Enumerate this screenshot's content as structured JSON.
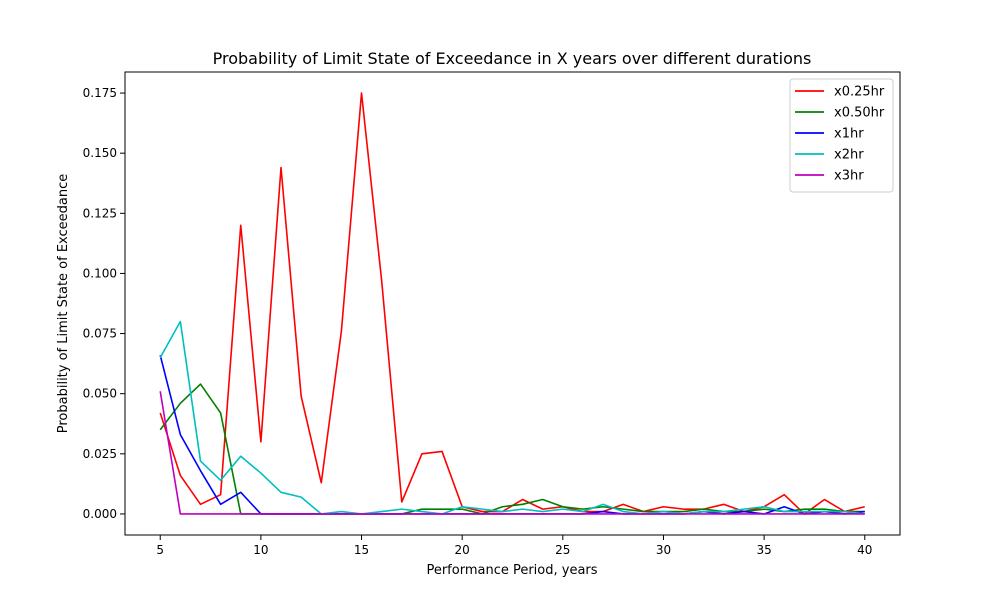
{
  "chart_data": {
    "type": "line",
    "title": "Probability of Limit State of Exceedance in X years over different durations",
    "xlabel": "Performance Period, years",
    "ylabel": "Probability of Limit State of Exceedance",
    "xlim": [
      3.25,
      41.75
    ],
    "ylim": [
      -0.00875,
      0.18375
    ],
    "xticks": [
      "5",
      "10",
      "15",
      "20",
      "25",
      "30",
      "35",
      "40"
    ],
    "yticks": [
      "0.000",
      "0.025",
      "0.050",
      "0.075",
      "0.100",
      "0.125",
      "0.150",
      "0.175"
    ],
    "grid": false,
    "legend_position": "top-right",
    "x": [
      5,
      6,
      7,
      8,
      9,
      10,
      11,
      12,
      13,
      14,
      15,
      16,
      17,
      18,
      19,
      20,
      21,
      22,
      23,
      24,
      25,
      26,
      27,
      28,
      29,
      30,
      31,
      32,
      33,
      34,
      35,
      36,
      37,
      38,
      39,
      40
    ],
    "series": [
      {
        "name": "x0.25hr",
        "color": "#ff0000",
        "values": [
          0.042,
          0.016,
          0.004,
          0.008,
          0.12,
          0.03,
          0.144,
          0.049,
          0.013,
          0.076,
          0.175,
          0.097,
          0.005,
          0.025,
          0.026,
          0.003,
          0.001,
          0.001,
          0.006,
          0.002,
          0.003,
          0.001,
          0.001,
          0.004,
          0.001,
          0.003,
          0.002,
          0.002,
          0.004,
          0.001,
          0.003,
          0.008,
          0.0,
          0.006,
          0.001,
          0.003
        ]
      },
      {
        "name": "x0.50hr",
        "color": "#008000",
        "values": [
          0.035,
          0.046,
          0.054,
          0.042,
          0.0,
          0.0,
          0.0,
          0.0,
          0.0,
          0.0,
          0.0,
          0.0,
          0.0,
          0.002,
          0.002,
          0.002,
          0.0,
          0.003,
          0.004,
          0.006,
          0.003,
          0.002,
          0.003,
          0.002,
          0.001,
          0.001,
          0.001,
          0.002,
          0.001,
          0.001,
          0.002,
          0.001,
          0.002,
          0.002,
          0.001,
          0.001
        ]
      },
      {
        "name": "x1hr",
        "color": "#0000ff",
        "values": [
          0.066,
          0.033,
          0.018,
          0.004,
          0.009,
          0.0,
          0.0,
          0.0,
          0.0,
          0.0,
          0.0,
          0.0,
          0.0,
          0.0,
          0.0,
          0.0,
          0.0,
          0.0,
          0.0,
          0.0,
          0.0,
          0.0,
          0.001,
          0.0,
          0.0,
          0.0,
          0.0,
          0.001,
          0.0,
          0.001,
          0.0,
          0.003,
          0.0,
          0.001,
          0.0,
          0.001
        ]
      },
      {
        "name": "x2hr",
        "color": "#00bfbf",
        "values": [
          0.065,
          0.08,
          0.022,
          0.014,
          0.024,
          0.017,
          0.009,
          0.007,
          0.0,
          0.001,
          0.0,
          0.001,
          0.002,
          0.001,
          0.0,
          0.003,
          0.002,
          0.001,
          0.002,
          0.001,
          0.002,
          0.001,
          0.004,
          0.001,
          0.0,
          0.001,
          0.0,
          0.001,
          0.001,
          0.002,
          0.003,
          0.001,
          0.001,
          0.001,
          0.001,
          0.0
        ]
      },
      {
        "name": "x3hr",
        "color": "#bf00bf",
        "values": [
          0.051,
          0.0,
          0.0,
          0.0,
          0.0,
          0.0,
          0.0,
          0.0,
          0.0,
          0.0,
          0.0,
          0.0,
          0.0,
          0.0,
          0.0,
          0.0,
          0.0,
          0.0,
          0.0,
          0.0,
          0.0,
          0.0,
          0.0,
          0.0,
          0.0,
          0.0,
          0.0,
          0.0,
          0.0,
          0.0,
          0.0,
          0.0,
          0.0,
          0.0,
          0.0,
          0.0
        ]
      }
    ]
  }
}
